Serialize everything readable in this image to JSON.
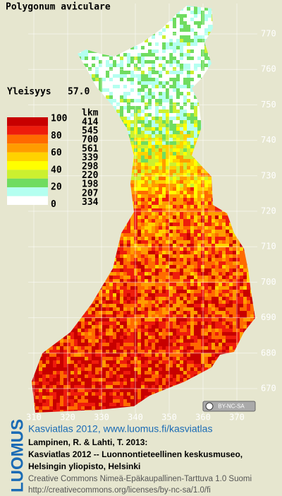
{
  "header": {
    "title": "Polygonum aviculare",
    "frequency_label": "Yleisyys",
    "frequency_value": "57.0"
  },
  "legend": {
    "count_header": "lkm",
    "class_labels": [
      "100",
      "80",
      "60",
      "40",
      "20",
      "0"
    ],
    "colors": [
      "#c80000",
      "#ee1c0c",
      "#ff6a00",
      "#ff9c00",
      "#ffd200",
      "#ffff00",
      "#ccf030",
      "#70dc60",
      "#b4fff0",
      "#ffffff"
    ],
    "counts": [
      414,
      545,
      700,
      561,
      339,
      298,
      220,
      198,
      207,
      334
    ]
  },
  "map": {
    "y_grid_labels": [
      "770",
      "760",
      "750",
      "740",
      "730",
      "720",
      "710",
      "700",
      "690",
      "680",
      "670"
    ],
    "x_grid_labels": [
      "310",
      "320",
      "330",
      "340",
      "350",
      "360",
      "370"
    ],
    "license_badge": "BY-NC-SA"
  },
  "credits": {
    "brand": "LUOMUS",
    "headline": "Kasviatlas 2012, www.luomus.fi/kasviatlas",
    "citation": [
      "Lampinen, R. & Lahti, T. 2013:",
      "Kasviatlas 2012 -- Luonnontieteellinen keskusmuseo,",
      "Helsingin yliopisto, Helsinki"
    ],
    "license": [
      "Creative Commons Nimeä-Epäkaupallinen-Tarttuva 1.0 Suomi",
      "http://creativecommons.org/licenses/by-nc-sa/1.0/fi"
    ]
  }
}
